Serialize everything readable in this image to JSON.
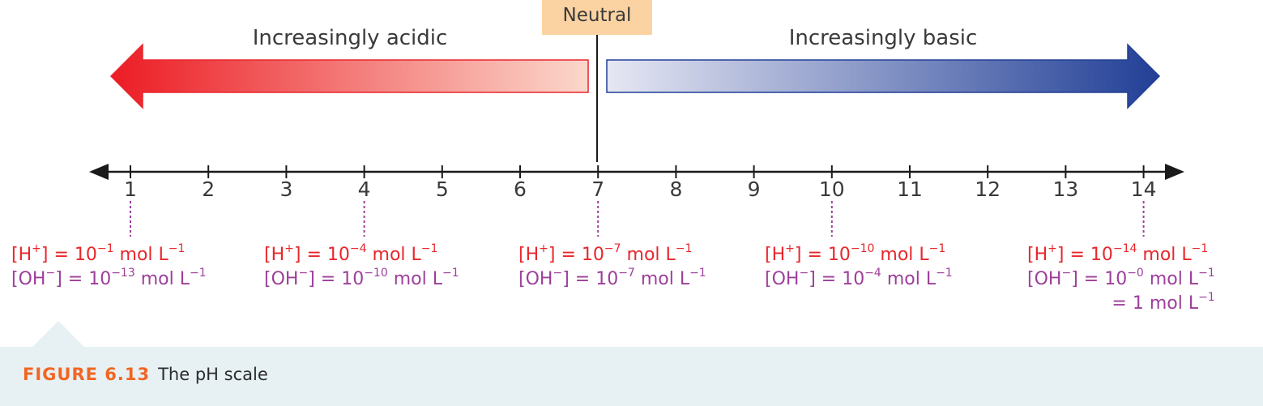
{
  "neutral_label": "Neutral",
  "acidic_label": "Increasingly acidic",
  "basic_label": "Increasingly basic",
  "colors": {
    "acid_strong": "#ec1c24",
    "acid_light": "#fbd8cc",
    "base_light": "#e6e7f3",
    "base_strong": "#213f96",
    "neutral_box": "#fbd3a2",
    "h_text": "#e8272c",
    "oh_text": "#9d3f9a",
    "caption_bg": "#e7f1f4",
    "caption_label": "#f26522"
  },
  "scale": {
    "ticks": [
      "1",
      "2",
      "3",
      "4",
      "5",
      "6",
      "7",
      "8",
      "9",
      "10",
      "11",
      "12",
      "13",
      "14"
    ],
    "annotated": [
      1,
      4,
      7,
      10,
      14
    ]
  },
  "concentrations": [
    {
      "ph": 1,
      "h_lead": "[H",
      "h_sup": "+",
      "h_mid": "] = 10",
      "h_exp": "−1",
      "h_unit": " mol L",
      "h_unit_exp": "−1",
      "oh_lead": "[OH",
      "oh_sup": "−",
      "oh_mid": "] = 10",
      "oh_exp": "−13",
      "oh_unit": " mol L",
      "oh_unit_exp": "−1"
    },
    {
      "ph": 4,
      "h_lead": "[H",
      "h_sup": "+",
      "h_mid": "] = 10",
      "h_exp": "−4",
      "h_unit": " mol L",
      "h_unit_exp": "−1",
      "oh_lead": "[OH",
      "oh_sup": "−",
      "oh_mid": "] = 10",
      "oh_exp": "−10",
      "oh_unit": " mol L",
      "oh_unit_exp": "−1"
    },
    {
      "ph": 7,
      "h_lead": "[H",
      "h_sup": "+",
      "h_mid": "] = 10",
      "h_exp": "−7",
      "h_unit": " mol L",
      "h_unit_exp": "−1",
      "oh_lead": "[OH",
      "oh_sup": "−",
      "oh_mid": "] = 10",
      "oh_exp": "−7",
      "oh_unit": " mol L",
      "oh_unit_exp": "−1"
    },
    {
      "ph": 10,
      "h_lead": "[H",
      "h_sup": "+",
      "h_mid": "] = 10",
      "h_exp": "−10",
      "h_unit": " mol L",
      "h_unit_exp": "−1",
      "oh_lead": "[OH",
      "oh_sup": "−",
      "oh_mid": "] = 10",
      "oh_exp": "−4",
      "oh_unit": " mol L",
      "oh_unit_exp": "−1"
    },
    {
      "ph": 14,
      "h_lead": "[H",
      "h_sup": "+",
      "h_mid": "] = 10",
      "h_exp": "−14",
      "h_unit": " mol L",
      "h_unit_exp": "−1",
      "oh_lead": "[OH",
      "oh_sup": "−",
      "oh_mid": "] = 10",
      "oh_exp": "−0",
      "oh_unit": " mol L",
      "oh_unit_exp": "−1",
      "extra_lead": "= 1 mol L",
      "extra_exp": "−1"
    }
  ],
  "caption": {
    "label": "FIGURE 6.13",
    "text": "The pH scale"
  }
}
